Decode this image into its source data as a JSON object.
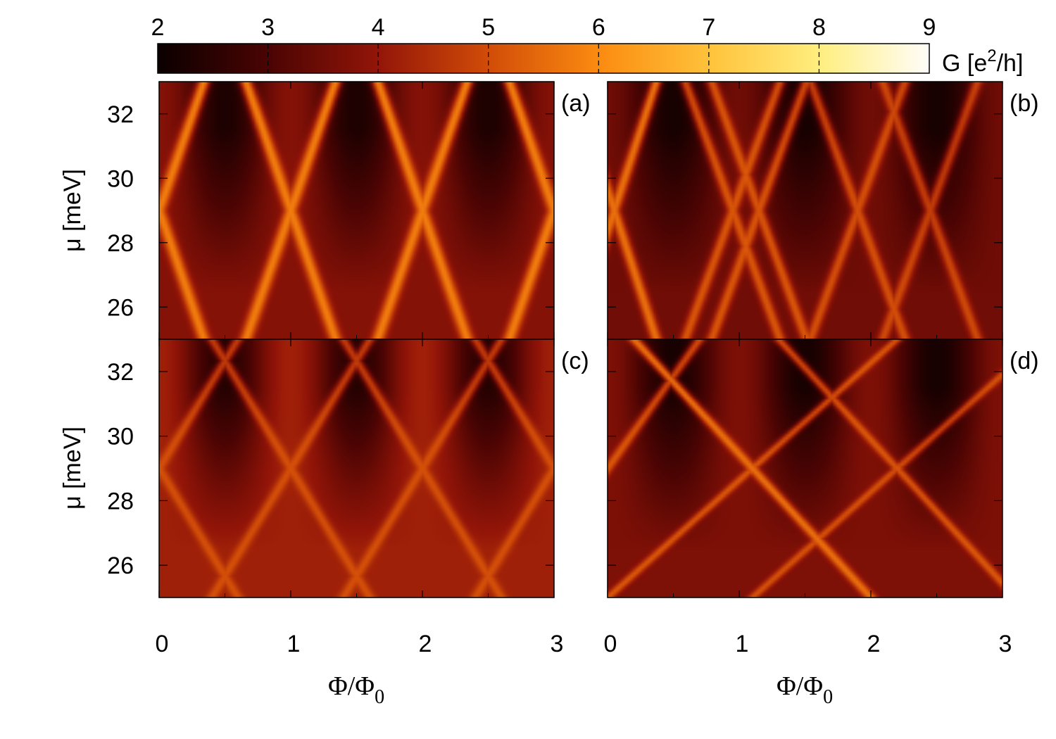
{
  "chart_data": {
    "type": "heatmap",
    "colorbar": {
      "min": 2,
      "max": 9,
      "ticks": [
        "2",
        "3",
        "4",
        "5",
        "6",
        "7",
        "8",
        "9"
      ],
      "label_main": "G [e",
      "label_sup": "2",
      "label_end": "/h]",
      "colormap": [
        {
          "v": 2.0,
          "color": "#0b0000"
        },
        {
          "v": 3.0,
          "color": "#4a0403"
        },
        {
          "v": 4.0,
          "color": "#931508"
        },
        {
          "v": 5.0,
          "color": "#d14c08"
        },
        {
          "v": 6.0,
          "color": "#fb8b10"
        },
        {
          "v": 7.0,
          "color": "#ffc23a"
        },
        {
          "v": 8.0,
          "color": "#ffee7e"
        },
        {
          "v": 9.0,
          "color": "#fffdfa"
        }
      ]
    },
    "x_axis": {
      "label_main": "Φ/Φ",
      "label_sub": "0",
      "range": [
        0,
        3
      ],
      "ticks": [
        "0",
        "1",
        "2",
        "3"
      ]
    },
    "y_axis": {
      "label_main": "μ [meV]",
      "range": [
        25,
        33
      ],
      "ticks": [
        "26",
        "28",
        "30",
        "32"
      ]
    },
    "panels": [
      {
        "label": "(a)",
        "background_G": 3.8,
        "dip_G": 2.3,
        "line_G": 5.8,
        "lines": [
          {
            "x0": 0.0,
            "x1": 0.17,
            "w": 0.05,
            "a": 1.0
          },
          {
            "x0": 0.0,
            "x1": -0.17,
            "w": 0.05,
            "a": 1.0
          },
          {
            "x0": 1.0,
            "x1": 0.17,
            "w": 0.05,
            "a": 1.0
          },
          {
            "x0": 1.0,
            "x1": -0.17,
            "w": 0.05,
            "a": 1.0
          },
          {
            "x0": 2.0,
            "x1": 0.17,
            "w": 0.05,
            "a": 1.0
          },
          {
            "x0": 2.0,
            "x1": -0.17,
            "w": 0.05,
            "a": 1.0
          },
          {
            "x0": 3.0,
            "x1": 0.17,
            "w": 0.05,
            "a": 1.0
          },
          {
            "x0": 3.0,
            "x1": -0.17,
            "w": 0.05,
            "a": 1.0
          }
        ]
      },
      {
        "label": "(b)",
        "background_G": 3.5,
        "dip_G": 2.2,
        "line_G": 5.6,
        "lines": [
          {
            "x0": 0.05,
            "x1": 0.16,
            "w": 0.045,
            "a": 1.0
          },
          {
            "x0": 0.05,
            "x1": -0.16,
            "w": 0.045,
            "a": 1.0
          },
          {
            "x0": 0.95,
            "x1": 0.18,
            "w": 0.045,
            "a": 0.8
          },
          {
            "x0": 0.95,
            "x1": -0.18,
            "w": 0.045,
            "a": 0.8
          },
          {
            "x0": 1.15,
            "x1": 0.18,
            "w": 0.045,
            "a": 0.8
          },
          {
            "x0": 1.15,
            "x1": -0.18,
            "w": 0.045,
            "a": 0.8
          },
          {
            "x0": 1.9,
            "x1": 0.18,
            "w": 0.045,
            "a": 0.75
          },
          {
            "x0": 1.9,
            "x1": -0.18,
            "w": 0.045,
            "a": 0.75
          },
          {
            "x0": 2.45,
            "x1": 0.18,
            "w": 0.045,
            "a": 0.7
          },
          {
            "x0": 2.45,
            "x1": -0.18,
            "w": 0.045,
            "a": 0.7
          }
        ]
      },
      {
        "label": "(c)",
        "background_G": 4.2,
        "dip_G": 2.4,
        "line_G": 5.3,
        "lines": [
          {
            "x0": 0.0,
            "x1": 0.3,
            "w": 0.045,
            "a": 0.8
          },
          {
            "x0": 0.0,
            "x1": -0.3,
            "w": 0.045,
            "a": 0.8
          },
          {
            "x0": 1.0,
            "x1": 0.3,
            "w": 0.045,
            "a": 0.8
          },
          {
            "x0": 1.0,
            "x1": -0.3,
            "w": 0.045,
            "a": 0.8
          },
          {
            "x0": 2.0,
            "x1": 0.3,
            "w": 0.045,
            "a": 0.8
          },
          {
            "x0": 2.0,
            "x1": -0.3,
            "w": 0.045,
            "a": 0.8
          },
          {
            "x0": 3.0,
            "x1": 0.3,
            "w": 0.045,
            "a": 0.8
          },
          {
            "x0": 3.0,
            "x1": -0.3,
            "w": 0.045,
            "a": 0.8
          }
        ]
      },
      {
        "label": "(d)",
        "background_G": 3.7,
        "dip_G": 2.2,
        "line_G": 5.6,
        "lines": [
          {
            "x0": 0.0,
            "x1": 0.35,
            "w": 0.045,
            "a": 0.8
          },
          {
            "x0": 1.1,
            "x1": -0.45,
            "w": 0.05,
            "a": 1.0
          },
          {
            "x0": 1.1,
            "x1": 0.55,
            "w": 0.045,
            "a": 0.8
          },
          {
            "x0": 2.2,
            "x1": -0.45,
            "w": 0.045,
            "a": 0.8
          },
          {
            "x0": 2.2,
            "x1": 0.55,
            "w": 0.045,
            "a": 0.75
          }
        ]
      }
    ]
  }
}
